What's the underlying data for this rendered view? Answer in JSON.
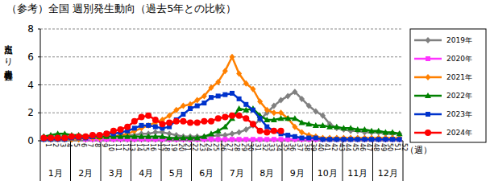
{
  "chart_data": {
    "type": "line",
    "title": "（参考）全国 週別発生動向（過去5年との比較）",
    "ylabel": "定点当たり患者報告数",
    "xlabel": "（週）",
    "month_labels": [
      "1月",
      "2月",
      "3月",
      "4月",
      "5月",
      "6月",
      "7月",
      "8月",
      "9月",
      "10月",
      "11月",
      "12月"
    ],
    "categories": [
      "1",
      "2",
      "3",
      "4",
      "5",
      "6",
      "7",
      "8",
      "9",
      "10",
      "11",
      "12",
      "13",
      "14",
      "15",
      "16",
      "17",
      "18",
      "19",
      "20",
      "21",
      "22",
      "23",
      "24",
      "25",
      "26",
      "27",
      "28",
      "29",
      "30",
      "31",
      "32",
      "33",
      "34",
      "35",
      "36",
      "37",
      "38",
      "39",
      "40",
      "41",
      "42",
      "43",
      "44",
      "45",
      "46",
      "47",
      "48",
      "49",
      "50",
      "51",
      "52"
    ],
    "ylim": [
      0,
      8
    ],
    "yticks": [
      0,
      2,
      4,
      6,
      8
    ],
    "grid": true,
    "legend": "right",
    "series": [
      {
        "name": "2019年",
        "color": "#808080",
        "marker": "diamond",
        "values": [
          0.3,
          0.3,
          0.3,
          0.3,
          0.3,
          0.3,
          0.3,
          0.3,
          0.3,
          0.3,
          0.3,
          0.3,
          0.4,
          0.4,
          0.5,
          0.5,
          0.6,
          0.6,
          0.5,
          0.4,
          0.3,
          0.3,
          0.3,
          0.3,
          0.3,
          0.4,
          0.4,
          0.5,
          0.6,
          0.8,
          1.1,
          1.5,
          2.0,
          2.5,
          2.9,
          3.2,
          3.5,
          3.0,
          2.5,
          2.1,
          1.8,
          1.2,
          0.9,
          0.8,
          0.7,
          0.7,
          0.6,
          0.6,
          0.6,
          0.5,
          0.5,
          0.5
        ]
      },
      {
        "name": "2020年",
        "color": "#ff33ff",
        "marker": "square",
        "values": [
          0.2,
          0.2,
          0.2,
          0.2,
          0.2,
          0.2,
          0.1,
          0.1,
          0.1,
          0.1,
          0.1,
          0.1,
          0.1,
          0.1,
          0.1,
          0.1,
          0.1,
          0.1,
          0.1,
          0.1,
          0.1,
          0.1,
          0.1,
          0.1,
          0.1,
          0.1,
          0.1,
          0.1,
          0.1,
          0.1,
          0.1,
          0.1,
          0.1,
          0.1,
          0.1,
          0.1,
          0.1,
          0.1,
          0.1,
          0.1,
          0.1,
          0.1,
          0.1,
          0.1,
          0.1,
          0.1,
          0.1,
          0.1,
          0.1,
          0.1,
          0.1,
          0.1
        ]
      },
      {
        "name": "2021年",
        "color": "#ff8000",
        "marker": "diamond",
        "values": [
          0.1,
          0.1,
          0.1,
          0.1,
          0.1,
          0.1,
          0.2,
          0.2,
          0.2,
          0.3,
          0.3,
          0.4,
          0.5,
          0.7,
          0.9,
          1.1,
          1.3,
          1.5,
          1.8,
          2.2,
          2.5,
          2.6,
          2.9,
          3.2,
          3.8,
          4.2,
          5.0,
          6.0,
          4.8,
          4.1,
          3.7,
          2.8,
          2.2,
          2.0,
          2.0,
          1.6,
          1.0,
          0.6,
          0.4,
          0.3,
          0.2,
          0.2,
          0.2,
          0.2,
          0.2,
          0.2,
          0.2,
          0.2,
          0.2,
          0.2,
          0.2,
          0.2
        ]
      },
      {
        "name": "2022年",
        "color": "#008000",
        "marker": "triangle",
        "values": [
          0.3,
          0.4,
          0.5,
          0.5,
          0.4,
          0.4,
          0.3,
          0.3,
          0.3,
          0.3,
          0.3,
          0.3,
          0.3,
          0.3,
          0.3,
          0.3,
          0.3,
          0.3,
          0.2,
          0.2,
          0.2,
          0.2,
          0.2,
          0.3,
          0.5,
          0.7,
          1.0,
          1.6,
          2.3,
          2.2,
          2.3,
          1.8,
          1.5,
          1.5,
          1.6,
          1.6,
          1.6,
          1.3,
          1.2,
          1.1,
          1.1,
          1.0,
          1.0,
          0.9,
          0.9,
          0.8,
          0.8,
          0.7,
          0.7,
          0.6,
          0.6,
          0.5
        ]
      },
      {
        "name": "2023年",
        "color": "#0033cc",
        "marker": "square",
        "values": [
          0.1,
          0.1,
          0.1,
          0.1,
          0.2,
          0.2,
          0.2,
          0.3,
          0.4,
          0.5,
          0.5,
          0.6,
          0.7,
          0.9,
          1.1,
          1.1,
          1.0,
          0.9,
          1.0,
          1.5,
          1.9,
          2.3,
          2.5,
          2.7,
          3.1,
          3.2,
          3.3,
          3.4,
          3.0,
          2.6,
          2.2,
          1.6,
          1.0,
          0.7,
          0.5,
          0.4,
          0.3,
          0.2,
          0.2,
          0.2,
          0.1,
          0.1,
          0.1,
          0.1,
          0.1,
          0.1,
          0.1,
          0.1,
          0.1,
          0.1,
          0.1,
          0.1
        ]
      },
      {
        "name": "2024年",
        "color": "#ff0000",
        "marker": "circle",
        "values": [
          0.2,
          0.2,
          0.2,
          0.2,
          0.3,
          0.3,
          0.3,
          0.4,
          0.4,
          0.5,
          0.7,
          0.8,
          1.0,
          1.4,
          1.7,
          1.8,
          1.5,
          1.2,
          1.3,
          1.4,
          1.4,
          1.3,
          1.3,
          1.4,
          1.4,
          1.6,
          1.7,
          1.8,
          1.8,
          1.6,
          1.2,
          0.7,
          0.6,
          0.7,
          0.7,
          null,
          null,
          null,
          null,
          null,
          null,
          null,
          null,
          null,
          null,
          null,
          null,
          null,
          null,
          null,
          null,
          null
        ]
      }
    ]
  }
}
